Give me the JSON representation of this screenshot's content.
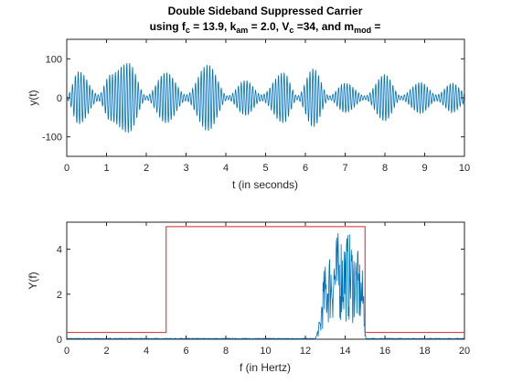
{
  "chart_data": [
    {
      "type": "line",
      "title_line1": "Double Sideband Suppressed Carrier",
      "title_line2": {
        "p1": "using f",
        "s1": "c",
        "p2": " = 13.9, k",
        "s2": "am",
        "p3": " = 2.0, V",
        "s3": "c",
        "p4": " =34, and m",
        "s4": "mod",
        "p5": " ="
      },
      "xlabel": "t (in seconds)",
      "ylabel": "y(t)",
      "xlim": [
        0,
        10
      ],
      "ylim": [
        -150,
        150
      ],
      "xticks": [
        "0",
        "1",
        "2",
        "3",
        "4",
        "5",
        "6",
        "7",
        "8",
        "9",
        "10"
      ],
      "yticks": [
        "-100",
        "0",
        "100"
      ],
      "carrier_freq_hz": 13.9,
      "series": [
        {
          "color": "#0072BD",
          "envelope": {
            "t": [
              0,
              0.3,
              0.8,
              1.1,
              1.55,
              2.0,
              2.5,
              3.0,
              3.55,
              4.05,
              4.5,
              4.9,
              5.45,
              5.8,
              6.2,
              6.6,
              7.0,
              7.5,
              8.0,
              8.4,
              8.9,
              9.3,
              9.7,
              10.0
            ],
            "amp": [
              5,
              68,
              8,
              60,
              90,
              5,
              65,
              8,
              85,
              5,
              45,
              8,
              65,
              5,
              75,
              5,
              38,
              5,
              60,
              5,
              40,
              8,
              38,
              15
            ]
          }
        }
      ]
    },
    {
      "type": "line",
      "xlabel": "f (in Hertz)",
      "ylabel": "Y(f)",
      "xlim": [
        0,
        20
      ],
      "ylim": [
        0,
        5.2
      ],
      "xticks": [
        "0",
        "2",
        "4",
        "6",
        "8",
        "10",
        "12",
        "14",
        "16",
        "18",
        "20"
      ],
      "yticks": [
        "0",
        "2",
        "4"
      ],
      "series": [
        {
          "color": "#D62728",
          "x": [
            0,
            5,
            5,
            15,
            15,
            20
          ],
          "y": [
            0.3,
            0.3,
            5,
            5,
            0.3,
            0.3
          ]
        },
        {
          "color": "#0072BD",
          "band_hz": [
            12.8,
            15.0
          ],
          "peak": 4.9
        }
      ]
    }
  ]
}
